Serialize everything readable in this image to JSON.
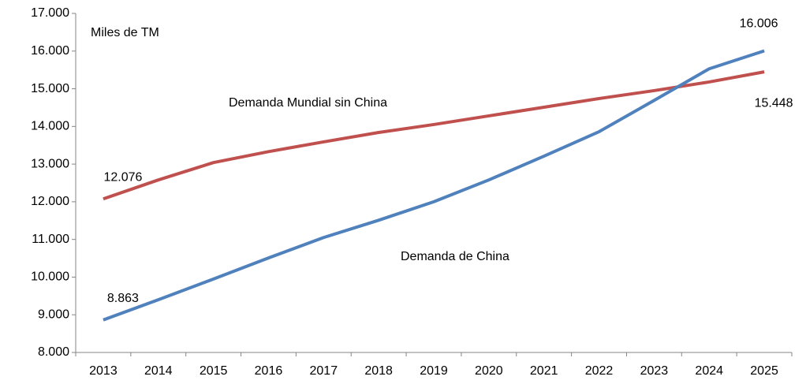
{
  "chart_data": {
    "type": "line",
    "y_label": "Miles de TM",
    "categories": [
      "2013",
      "2014",
      "2015",
      "2016",
      "2017",
      "2018",
      "2019",
      "2020",
      "2021",
      "2022",
      "2023",
      "2024",
      "2025"
    ],
    "series": [
      {
        "name": "Demanda Mundial sin China",
        "color": "#c0504d",
        "values": [
          12076,
          12580,
          13040,
          13330,
          13590,
          13840,
          14050,
          14280,
          14510,
          14740,
          14950,
          15180,
          15448
        ],
        "value_labels": [
          "12.076",
          null,
          null,
          null,
          null,
          null,
          null,
          null,
          null,
          null,
          null,
          null,
          "15.448"
        ]
      },
      {
        "name": "Demanda de China",
        "color": "#4f81bd",
        "values": [
          8863,
          9400,
          9950,
          10510,
          11050,
          11510,
          12000,
          12580,
          13210,
          13860,
          14690,
          15530,
          16006
        ],
        "value_labels": [
          "8.863",
          null,
          null,
          null,
          null,
          null,
          null,
          null,
          null,
          null,
          null,
          null,
          "16.006"
        ]
      }
    ],
    "ylim": [
      8000,
      17000
    ],
    "yticks": [
      {
        "value": 8000,
        "label": "8.000"
      },
      {
        "value": 9000,
        "label": "9.000"
      },
      {
        "value": 10000,
        "label": "10.000"
      },
      {
        "value": 11000,
        "label": "11.000"
      },
      {
        "value": 12000,
        "label": "12.000"
      },
      {
        "value": 13000,
        "label": "13.000"
      },
      {
        "value": 14000,
        "label": "14.000"
      },
      {
        "value": 15000,
        "label": "15.000"
      },
      {
        "value": 16000,
        "label": "16.000"
      },
      {
        "value": 17000,
        "label": "17.000"
      }
    ],
    "grid": false
  }
}
